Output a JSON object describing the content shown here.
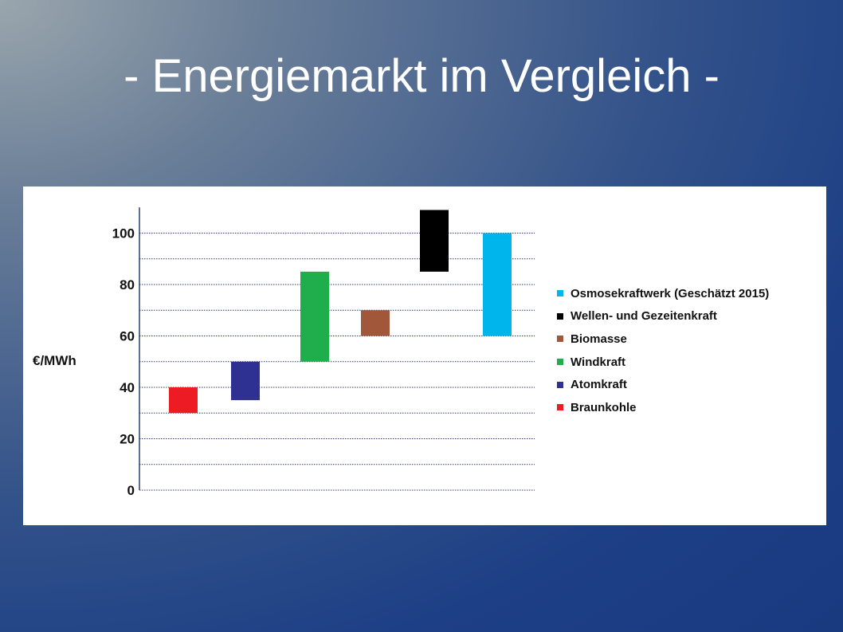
{
  "slide": {
    "title": "- Energiemarkt im Vergleich -"
  },
  "chart_data": {
    "type": "bar",
    "subtype": "floating-range",
    "ylabel": "€/MWh",
    "ylim": [
      0,
      110
    ],
    "yticks": [
      0,
      20,
      40,
      60,
      80,
      100
    ],
    "grid": true,
    "legend_position": "right",
    "series": [
      {
        "name": "Braunkohle",
        "low": 30,
        "high": 40,
        "color": "#ed1c24"
      },
      {
        "name": "Atomkraft",
        "low": 35,
        "high": 50,
        "color": "#2e3192"
      },
      {
        "name": "Windkraft",
        "low": 50,
        "high": 85,
        "color": "#1fae4b"
      },
      {
        "name": "Biomasse",
        "low": 60,
        "high": 70,
        "color": "#a0573a"
      },
      {
        "name": "Wellen- und Gezeitenkraft",
        "low": 85,
        "high": 109,
        "color": "#000000"
      },
      {
        "name": "Osmosekraftwerk (Geschätzt 2015)",
        "low": 60,
        "high": 100,
        "color": "#00b4ec"
      }
    ],
    "legend_order": [
      "Osmosekraftwerk (Geschätzt 2015)",
      "Wellen- und Gezeitenkraft",
      "Biomasse",
      "Windkraft",
      "Atomkraft",
      "Braunkohle"
    ]
  }
}
